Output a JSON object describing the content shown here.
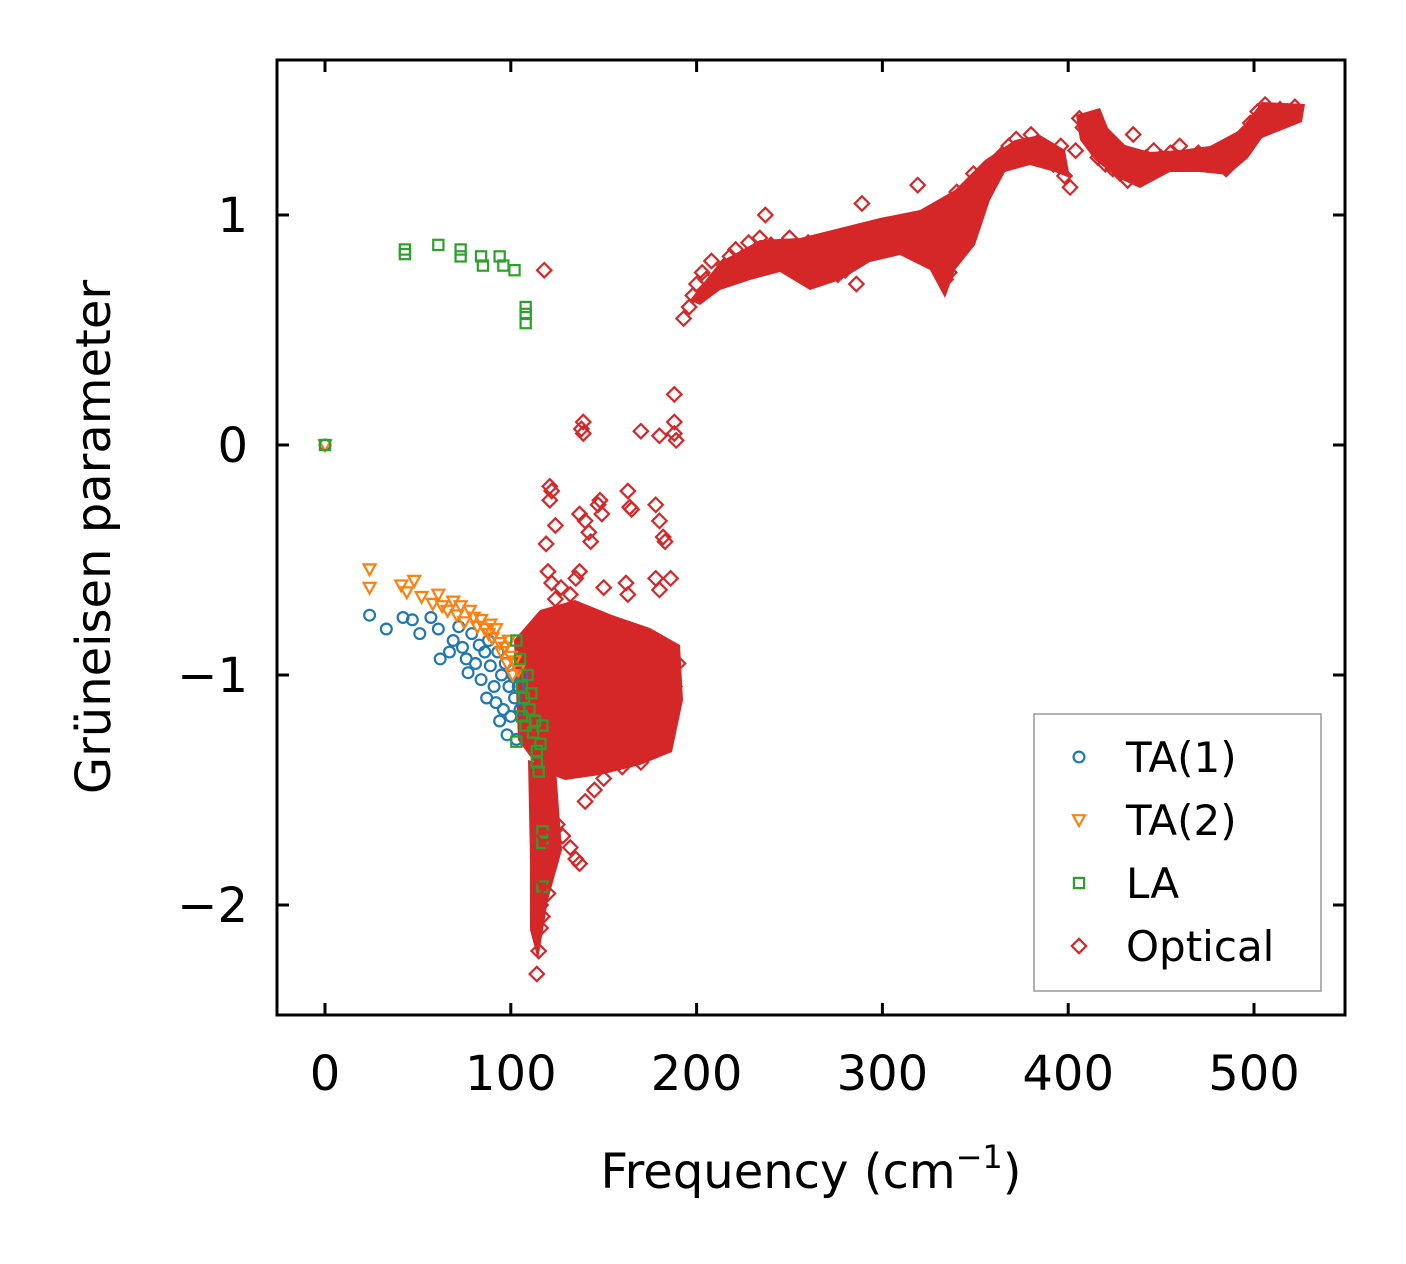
{
  "chart_data": {
    "type": "scatter",
    "xlabel": "Frequency (cm",
    "xlabel_sup": "−1",
    "xlabel_close": ")",
    "ylabel": "Grüneisen parameter",
    "xlim": [
      -26,
      550
    ],
    "ylim": [
      -2.5,
      1.68
    ],
    "xticks": [
      0,
      100,
      200,
      300,
      400,
      500
    ],
    "xtick_labels": [
      "0",
      "100",
      "200",
      "300",
      "400",
      "500"
    ],
    "yticks": [
      -2,
      -1,
      0,
      1
    ],
    "ytick_labels": [
      "−2",
      "−1",
      "0",
      "1"
    ],
    "legend_position": "lower-right",
    "series": [
      {
        "name": "TA(1)",
        "marker": "circle",
        "color": "#1f77b4",
        "points": [
          [
            0,
            0
          ],
          [
            24,
            -0.74
          ],
          [
            33,
            -0.8
          ],
          [
            42,
            -0.75
          ],
          [
            47,
            -0.76
          ],
          [
            51,
            -0.82
          ],
          [
            57,
            -0.75
          ],
          [
            61,
            -0.8
          ],
          [
            62,
            -0.93
          ],
          [
            67,
            -0.9
          ],
          [
            69,
            -0.85
          ],
          [
            72,
            -0.79
          ],
          [
            74,
            -0.88
          ],
          [
            76,
            -0.93
          ],
          [
            77,
            -0.99
          ],
          [
            79,
            -0.82
          ],
          [
            81,
            -0.95
          ],
          [
            83,
            -0.87
          ],
          [
            84,
            -1.02
          ],
          [
            86,
            -0.9
          ],
          [
            87,
            -1.1
          ],
          [
            88,
            -0.85
          ],
          [
            89,
            -0.96
          ],
          [
            91,
            -1.05
          ],
          [
            92,
            -1.12
          ],
          [
            93,
            -0.9
          ],
          [
            94,
            -1.2
          ],
          [
            95,
            -1.0
          ],
          [
            96,
            -1.15
          ],
          [
            97,
            -0.95
          ],
          [
            98,
            -1.26
          ],
          [
            99,
            -1.05
          ],
          [
            100,
            -1.18
          ],
          [
            101,
            -1.0
          ],
          [
            102,
            -1.1
          ],
          [
            103,
            -1.28
          ],
          [
            104,
            -1.05
          ],
          [
            105,
            -1.15
          ],
          [
            106,
            -1.0
          ]
        ]
      },
      {
        "name": "TA(2)",
        "marker": "triangle-down",
        "color": "#ff7f0e",
        "points": [
          [
            0,
            0
          ],
          [
            24,
            -0.54
          ],
          [
            24,
            -0.62
          ],
          [
            41,
            -0.61
          ],
          [
            44,
            -0.64
          ],
          [
            48,
            -0.59
          ],
          [
            52,
            -0.66
          ],
          [
            58,
            -0.69
          ],
          [
            61,
            -0.65
          ],
          [
            63,
            -0.7
          ],
          [
            66,
            -0.72
          ],
          [
            69,
            -0.68
          ],
          [
            71,
            -0.74
          ],
          [
            73,
            -0.7
          ],
          [
            75,
            -0.77
          ],
          [
            78,
            -0.72
          ],
          [
            80,
            -0.75
          ],
          [
            82,
            -0.79
          ],
          [
            84,
            -0.76
          ],
          [
            86,
            -0.8
          ],
          [
            88,
            -0.82
          ],
          [
            89,
            -0.78
          ],
          [
            90,
            -0.84
          ],
          [
            92,
            -0.8
          ],
          [
            94,
            -0.86
          ],
          [
            95,
            -0.9
          ],
          [
            97,
            -0.88
          ],
          [
            98,
            -0.95
          ],
          [
            99,
            -0.85
          ],
          [
            100,
            -0.92
          ],
          [
            101,
            -1.0
          ],
          [
            102,
            -0.94
          ],
          [
            104,
            -0.98
          ]
        ]
      },
      {
        "name": "LA",
        "marker": "square",
        "color": "#2ca02c",
        "points": [
          [
            0,
            0
          ],
          [
            43,
            0.85
          ],
          [
            43,
            0.83
          ],
          [
            61,
            0.87
          ],
          [
            73,
            0.85
          ],
          [
            73,
            0.82
          ],
          [
            84,
            0.82
          ],
          [
            85,
            0.78
          ],
          [
            94,
            0.82
          ],
          [
            96,
            0.78
          ],
          [
            102,
            0.76
          ],
          [
            108,
            0.6
          ],
          [
            108,
            0.57
          ],
          [
            108,
            0.53
          ],
          [
            103,
            -0.85
          ],
          [
            105,
            -0.93
          ],
          [
            106,
            -1.05
          ],
          [
            106,
            -1.18
          ],
          [
            107,
            -1.1
          ],
          [
            108,
            -1.22
          ],
          [
            109,
            -1.0
          ],
          [
            110,
            -1.15
          ],
          [
            111,
            -1.08
          ],
          [
            112,
            -1.25
          ],
          [
            113,
            -1.2
          ],
          [
            114,
            -1.33
          ],
          [
            114,
            -1.38
          ],
          [
            115,
            -1.42
          ],
          [
            116,
            -1.3
          ],
          [
            117,
            -1.22
          ],
          [
            103,
            -1.29
          ],
          [
            117,
            -1.68
          ],
          [
            117,
            -1.73
          ],
          [
            117,
            -1.92
          ]
        ]
      },
      {
        "name": "Optical",
        "marker": "diamond",
        "color": "#d62728",
        "points": [
          [
            118,
            0.76
          ],
          [
            139,
            0.1
          ],
          [
            138,
            0.07
          ],
          [
            139,
            0.05
          ],
          [
            170,
            0.06
          ],
          [
            180,
            0.04
          ],
          [
            188,
            0.22
          ],
          [
            188,
            0.1
          ],
          [
            188,
            0.05
          ],
          [
            189,
            0.02
          ],
          [
            121,
            -0.18
          ],
          [
            122,
            -0.2
          ],
          [
            121,
            -0.24
          ],
          [
            124,
            -0.35
          ],
          [
            119,
            -0.43
          ],
          [
            137,
            -0.3
          ],
          [
            140,
            -0.33
          ],
          [
            142,
            -0.38
          ],
          [
            143,
            -0.42
          ],
          [
            147,
            -0.26
          ],
          [
            148,
            -0.24
          ],
          [
            149,
            -0.3
          ],
          [
            163,
            -0.2
          ],
          [
            164,
            -0.27
          ],
          [
            165,
            -0.28
          ],
          [
            178,
            -0.26
          ],
          [
            180,
            -0.33
          ],
          [
            182,
            -0.4
          ],
          [
            183,
            -0.42
          ],
          [
            120,
            -0.55
          ],
          [
            122,
            -0.6
          ],
          [
            124,
            -0.67
          ],
          [
            127,
            -0.62
          ],
          [
            132,
            -0.65
          ],
          [
            135,
            -0.58
          ],
          [
            137,
            -0.55
          ],
          [
            150,
            -0.62
          ],
          [
            162,
            -0.6
          ],
          [
            163,
            -0.65
          ],
          [
            178,
            -0.58
          ],
          [
            180,
            -0.63
          ],
          [
            186,
            -0.58
          ],
          [
            117,
            -1.5
          ],
          [
            118,
            -1.7
          ],
          [
            120,
            -1.6
          ],
          [
            118,
            -1.9
          ],
          [
            117,
            -2.05
          ],
          [
            116,
            -2.1
          ],
          [
            115,
            -2.2
          ],
          [
            114,
            -2.3
          ],
          [
            116,
            -2.0
          ],
          [
            118,
            -1.8
          ],
          [
            120,
            -1.95
          ],
          [
            123,
            -1.75
          ],
          [
            125,
            -1.65
          ],
          [
            128,
            -1.7
          ],
          [
            132,
            -1.75
          ],
          [
            135,
            -1.8
          ],
          [
            137,
            -1.82
          ],
          [
            140,
            -1.55
          ],
          [
            145,
            -1.5
          ],
          [
            150,
            -1.45
          ],
          [
            160,
            -1.4
          ],
          [
            170,
            -1.38
          ],
          [
            175,
            -1.3
          ],
          [
            180,
            -1.25
          ],
          [
            185,
            -1.15
          ],
          [
            188,
            -1.05
          ],
          [
            190,
            -0.95
          ],
          [
            193,
            0.55
          ],
          [
            196,
            0.6
          ],
          [
            198,
            0.65
          ],
          [
            200,
            0.7
          ],
          [
            203,
            0.75
          ],
          [
            205,
            0.72
          ],
          [
            208,
            0.8
          ],
          [
            212,
            0.74
          ],
          [
            215,
            0.78
          ],
          [
            218,
            0.82
          ],
          [
            221,
            0.85
          ],
          [
            224,
            0.8
          ],
          [
            228,
            0.88
          ],
          [
            231,
            0.84
          ],
          [
            234,
            0.9
          ],
          [
            237,
            1.0
          ],
          [
            240,
            0.87
          ],
          [
            243,
            0.82
          ],
          [
            246,
            0.85
          ],
          [
            250,
            0.9
          ],
          [
            253,
            0.86
          ],
          [
            256,
            0.82
          ],
          [
            260,
            0.88
          ],
          [
            263,
            0.8
          ],
          [
            266,
            0.77
          ],
          [
            270,
            0.84
          ],
          [
            273,
            0.78
          ],
          [
            276,
            0.74
          ],
          [
            280,
            0.76
          ],
          [
            283,
            0.82
          ],
          [
            286,
            0.7
          ],
          [
            289,
            1.05
          ],
          [
            292,
            0.85
          ],
          [
            296,
            0.9
          ],
          [
            300,
            0.88
          ],
          [
            304,
            0.93
          ],
          [
            308,
            0.96
          ],
          [
            312,
            0.9
          ],
          [
            316,
            0.85
          ],
          [
            319,
            1.13
          ],
          [
            322,
            0.88
          ],
          [
            325,
            0.82
          ],
          [
            328,
            0.92
          ],
          [
            331,
            0.8
          ],
          [
            334,
            0.72
          ],
          [
            336,
            0.75
          ],
          [
            338,
            1.0
          ],
          [
            340,
            1.1
          ],
          [
            343,
            1.06
          ],
          [
            346,
            1.1
          ],
          [
            349,
            1.18
          ],
          [
            352,
            1.12
          ],
          [
            356,
            1.15
          ],
          [
            360,
            1.2
          ],
          [
            364,
            1.26
          ],
          [
            368,
            1.3
          ],
          [
            372,
            1.33
          ],
          [
            376,
            1.3
          ],
          [
            380,
            1.35
          ],
          [
            384,
            1.28
          ],
          [
            388,
            1.25
          ],
          [
            392,
            1.22
          ],
          [
            396,
            1.3
          ],
          [
            398,
            1.17
          ],
          [
            401,
            1.12
          ],
          [
            404,
            1.28
          ],
          [
            406,
            1.42
          ],
          [
            408,
            1.38
          ],
          [
            412,
            1.32
          ],
          [
            416,
            1.25
          ],
          [
            420,
            1.22
          ],
          [
            424,
            1.2
          ],
          [
            428,
            1.18
          ],
          [
            432,
            1.15
          ],
          [
            435,
            1.35
          ],
          [
            438,
            1.2
          ],
          [
            442,
            1.25
          ],
          [
            446,
            1.28
          ],
          [
            450,
            1.25
          ],
          [
            455,
            1.27
          ],
          [
            460,
            1.3
          ],
          [
            465,
            1.24
          ],
          [
            470,
            1.27
          ],
          [
            475,
            1.22
          ],
          [
            480,
            1.26
          ],
          [
            485,
            1.2
          ],
          [
            490,
            1.25
          ],
          [
            494,
            1.35
          ],
          [
            498,
            1.4
          ],
          [
            502,
            1.45
          ],
          [
            506,
            1.48
          ],
          [
            510,
            1.44
          ],
          [
            514,
            1.46
          ],
          [
            518,
            1.45
          ],
          [
            522,
            1.47
          ]
        ]
      }
    ]
  }
}
